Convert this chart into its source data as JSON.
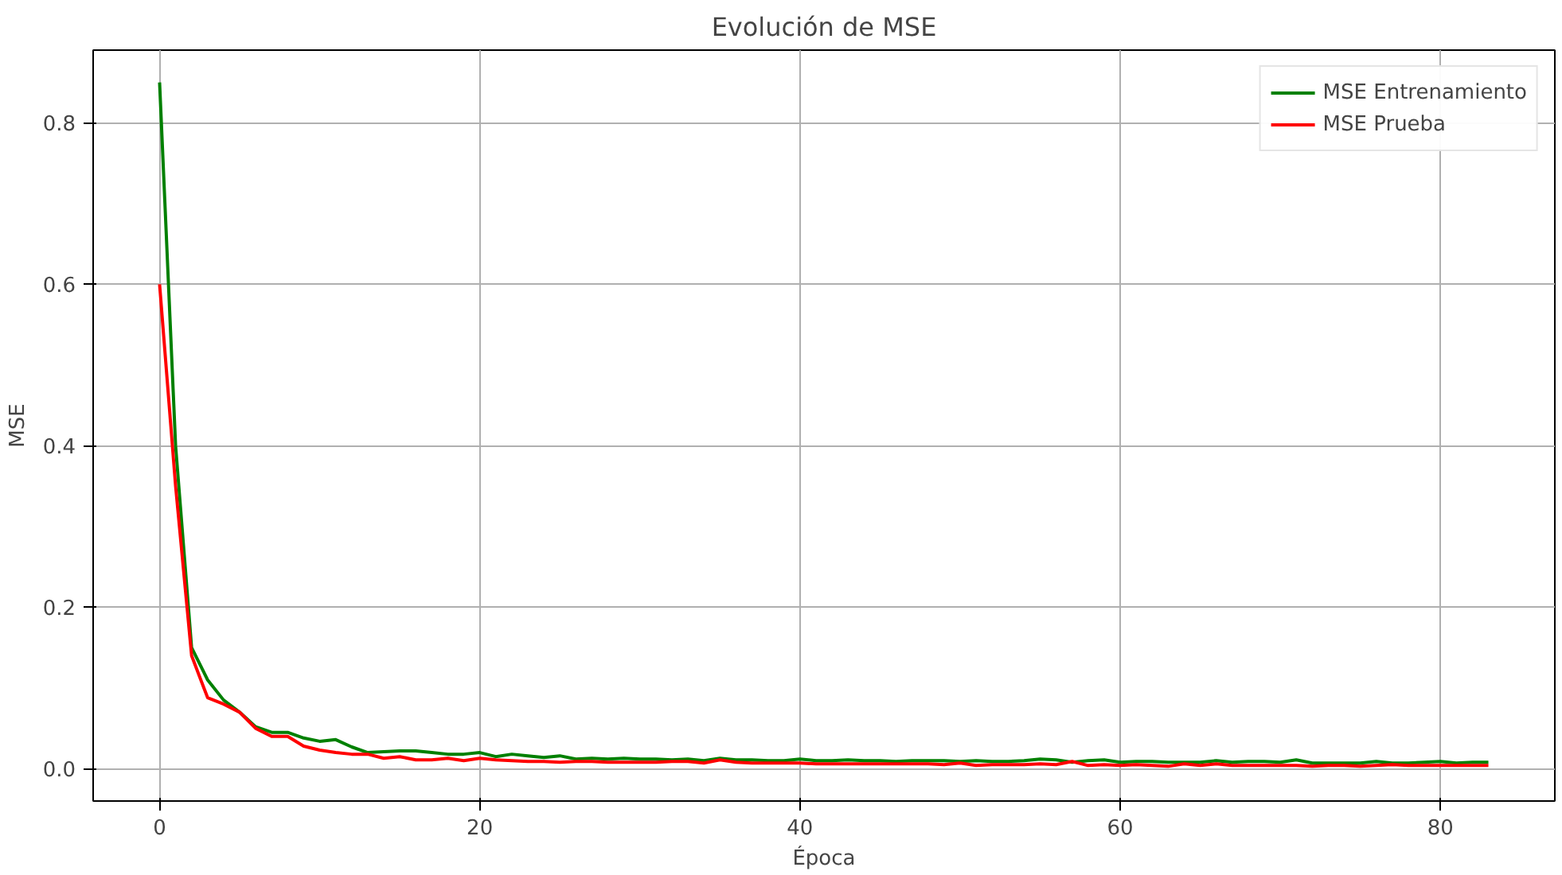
{
  "chart_data": {
    "type": "line",
    "title": "Evolución de MSE",
    "xlabel": "Época",
    "ylabel": "MSE",
    "x": [
      0,
      1,
      2,
      3,
      4,
      5,
      6,
      7,
      8,
      9,
      10,
      11,
      12,
      13,
      14,
      15,
      16,
      17,
      18,
      19,
      20,
      21,
      22,
      23,
      24,
      25,
      26,
      27,
      28,
      29,
      30,
      31,
      32,
      33,
      34,
      35,
      36,
      37,
      38,
      39,
      40,
      41,
      42,
      43,
      44,
      45,
      46,
      47,
      48,
      49,
      50,
      51,
      52,
      53,
      54,
      55,
      56,
      57,
      58,
      59,
      60,
      61,
      62,
      63,
      64,
      65,
      66,
      67,
      68,
      69,
      70,
      71,
      72,
      73,
      74,
      75,
      76,
      77,
      78,
      79,
      80,
      81,
      82,
      83
    ],
    "series": [
      {
        "name": "MSE Entrenamiento",
        "color": "#008000",
        "values": [
          0.85,
          0.4,
          0.15,
          0.11,
          0.085,
          0.07,
          0.052,
          0.045,
          0.045,
          0.038,
          0.034,
          0.036,
          0.027,
          0.02,
          0.021,
          0.022,
          0.022,
          0.02,
          0.018,
          0.018,
          0.02,
          0.015,
          0.018,
          0.016,
          0.014,
          0.016,
          0.012,
          0.013,
          0.012,
          0.013,
          0.012,
          0.012,
          0.011,
          0.012,
          0.01,
          0.013,
          0.011,
          0.011,
          0.01,
          0.01,
          0.012,
          0.01,
          0.01,
          0.011,
          0.01,
          0.01,
          0.009,
          0.01,
          0.01,
          0.01,
          0.009,
          0.01,
          0.009,
          0.009,
          0.01,
          0.012,
          0.011,
          0.008,
          0.01,
          0.011,
          0.008,
          0.009,
          0.009,
          0.008,
          0.008,
          0.008,
          0.01,
          0.008,
          0.009,
          0.009,
          0.008,
          0.011,
          0.007,
          0.007,
          0.007,
          0.007,
          0.009,
          0.007,
          0.007,
          0.008,
          0.009,
          0.007,
          0.008,
          0.008
        ]
      },
      {
        "name": "MSE Prueba",
        "color": "#ff0000",
        "values": [
          0.6,
          0.35,
          0.14,
          0.088,
          0.08,
          0.07,
          0.05,
          0.04,
          0.04,
          0.028,
          0.023,
          0.02,
          0.018,
          0.018,
          0.013,
          0.015,
          0.011,
          0.011,
          0.013,
          0.01,
          0.013,
          0.011,
          0.01,
          0.009,
          0.009,
          0.008,
          0.009,
          0.009,
          0.008,
          0.008,
          0.008,
          0.008,
          0.009,
          0.009,
          0.007,
          0.011,
          0.008,
          0.007,
          0.007,
          0.007,
          0.007,
          0.006,
          0.006,
          0.006,
          0.006,
          0.006,
          0.006,
          0.006,
          0.006,
          0.005,
          0.007,
          0.004,
          0.005,
          0.005,
          0.005,
          0.006,
          0.005,
          0.009,
          0.004,
          0.005,
          0.004,
          0.005,
          0.004,
          0.003,
          0.006,
          0.004,
          0.006,
          0.004,
          0.004,
          0.004,
          0.004,
          0.004,
          0.003,
          0.004,
          0.004,
          0.003,
          0.004,
          0.005,
          0.004,
          0.004,
          0.004,
          0.004,
          0.004,
          0.004
        ]
      }
    ],
    "xlim": [
      -4.15,
      87.15
    ],
    "ylim": [
      -0.04,
      0.89
    ],
    "xticks": [
      0,
      20,
      40,
      60,
      80
    ],
    "yticks": [
      {
        "value": 0,
        "label": "0.0"
      },
      {
        "value": 0.2,
        "label": "0.2"
      },
      {
        "value": 0.4,
        "label": "0.4"
      },
      {
        "value": 0.6,
        "label": "0.6"
      },
      {
        "value": 0.8,
        "label": "0.8"
      }
    ],
    "grid": true,
    "legend": "top right"
  }
}
